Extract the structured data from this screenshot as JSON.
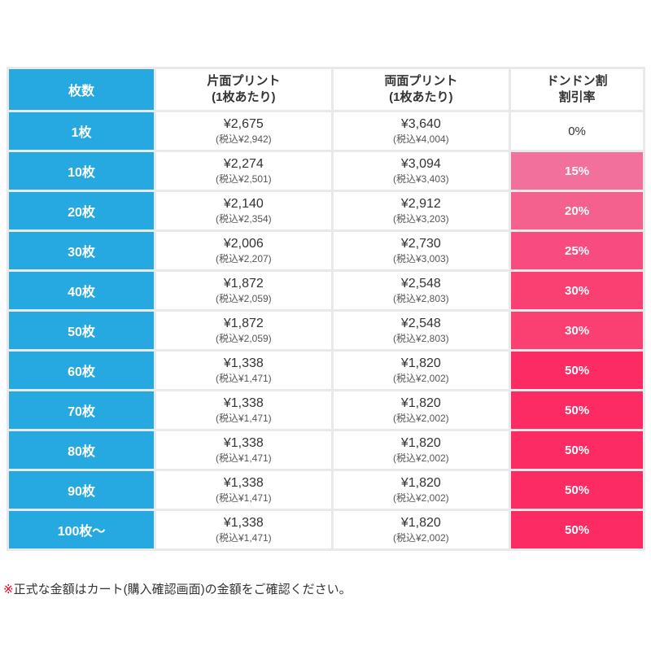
{
  "table": {
    "headers": {
      "qty": "枚数",
      "single_line1": "片面プリント",
      "single_line2": "(1枚あたり)",
      "double_line1": "両面プリント",
      "double_line2": "(1枚あたり)",
      "discount_line1": "ドンドン割",
      "discount_line2": "割引率"
    },
    "rows": [
      {
        "qty": "1枚",
        "single_price": "¥2,675",
        "single_tax": "(税込¥2,942)",
        "double_price": "¥3,640",
        "double_tax": "(税込¥4,004)",
        "discount": "0%",
        "discount_bg": ""
      },
      {
        "qty": "10枚",
        "single_price": "¥2,274",
        "single_tax": "(税込¥2,501)",
        "double_price": "¥3,094",
        "double_tax": "(税込¥3,403)",
        "discount": "15%",
        "discount_bg": "#f2709c"
      },
      {
        "qty": "20枚",
        "single_price": "¥2,140",
        "single_tax": "(税込¥2,354)",
        "double_price": "¥2,912",
        "double_tax": "(税込¥3,203)",
        "discount": "20%",
        "discount_bg": "#f4618f"
      },
      {
        "qty": "30枚",
        "single_price": "¥2,006",
        "single_tax": "(税込¥2,207)",
        "double_price": "¥2,730",
        "double_tax": "(税込¥3,003)",
        "discount": "25%",
        "discount_bg": "#f84c80"
      },
      {
        "qty": "40枚",
        "single_price": "¥1,872",
        "single_tax": "(税込¥2,059)",
        "double_price": "¥2,548",
        "double_tax": "(税込¥2,803)",
        "discount": "30%",
        "discount_bg": "#fa3f72"
      },
      {
        "qty": "50枚",
        "single_price": "¥1,872",
        "single_tax": "(税込¥2,059)",
        "double_price": "¥2,548",
        "double_tax": "(税込¥2,803)",
        "discount": "30%",
        "discount_bg": "#fa3f72"
      },
      {
        "qty": "60枚",
        "single_price": "¥1,338",
        "single_tax": "(税込¥1,471)",
        "double_price": "¥1,820",
        "double_tax": "(税込¥2,002)",
        "discount": "50%",
        "discount_bg": "#fc2b63"
      },
      {
        "qty": "70枚",
        "single_price": "¥1,338",
        "single_tax": "(税込¥1,471)",
        "double_price": "¥1,820",
        "double_tax": "(税込¥2,002)",
        "discount": "50%",
        "discount_bg": "#fc2b63"
      },
      {
        "qty": "80枚",
        "single_price": "¥1,338",
        "single_tax": "(税込¥1,471)",
        "double_price": "¥1,820",
        "double_tax": "(税込¥2,002)",
        "discount": "50%",
        "discount_bg": "#fc2b63"
      },
      {
        "qty": "90枚",
        "single_price": "¥1,338",
        "single_tax": "(税込¥1,471)",
        "double_price": "¥1,820",
        "double_tax": "(税込¥2,002)",
        "discount": "50%",
        "discount_bg": "#fc2b63"
      },
      {
        "qty": "100枚〜",
        "single_price": "¥1,338",
        "single_tax": "(税込¥1,471)",
        "double_price": "¥1,820",
        "double_tax": "(税込¥2,002)",
        "discount": "50%",
        "discount_bg": "#fc2b63"
      }
    ]
  },
  "footnote": {
    "marker": "※",
    "text": "正式な金額はカート(購入確認画面)の金額をご確認ください。"
  },
  "colors": {
    "qty_blue": "#25a9e0",
    "discount_15": "#f2709c",
    "discount_20": "#f4618f",
    "discount_25": "#f84c80",
    "discount_30": "#fa3f72",
    "discount_50": "#fc2b63",
    "border": "#e9e9e9",
    "footnote_marker_red": "#e60023"
  }
}
